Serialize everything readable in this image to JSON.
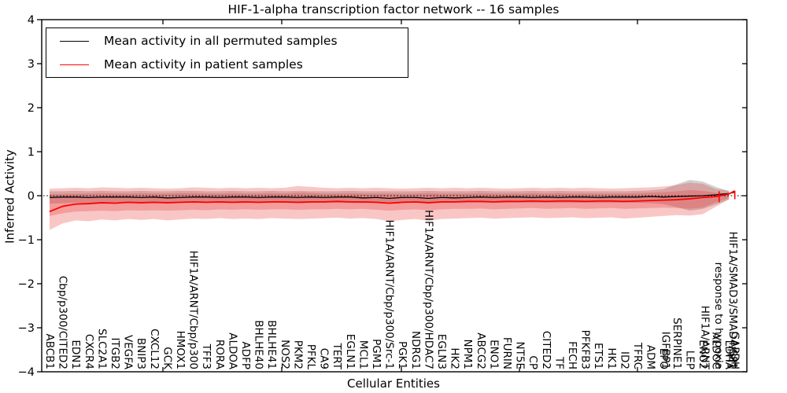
{
  "legend": {
    "items": [
      {
        "label": "Mean activity in all permuted samples",
        "color": "#000000"
      },
      {
        "label": "Mean activity in patient samples",
        "color": "#ff0000"
      }
    ]
  },
  "chart_data": {
    "type": "line",
    "title": "HIF-1-alpha transcription factor network -- 16 samples",
    "xlabel": "Cellular Entities",
    "ylabel": "Inferred Activity",
    "ylim": [
      -4,
      4
    ],
    "yticks": [
      4,
      3,
      2,
      1,
      0,
      -1,
      -2,
      -3,
      -4
    ],
    "zero_line": 0,
    "grid": false,
    "legend_position": "upper left",
    "categories": [
      {
        "x": 0,
        "label": "ABCB1"
      },
      {
        "x": 1,
        "label": "Cbp/p300/CITED2"
      },
      {
        "x": 2,
        "label": "EDN1"
      },
      {
        "x": 3,
        "label": "CXCR4"
      },
      {
        "x": 4,
        "label": "SLC2A1"
      },
      {
        "x": 5,
        "label": "ITGB2"
      },
      {
        "x": 6,
        "label": "VEGFA"
      },
      {
        "x": 7,
        "label": "BNIP3"
      },
      {
        "x": 8,
        "label": "CXCL12"
      },
      {
        "x": 9,
        "label": "GCK"
      },
      {
        "x": 10,
        "label": "HMOX1"
      },
      {
        "x": 11,
        "label": "HIF1A/ARNT/Cbp/p300"
      },
      {
        "x": 12,
        "label": "TFF3"
      },
      {
        "x": 13,
        "label": "RORA"
      },
      {
        "x": 14,
        "label": "ALDOA"
      },
      {
        "x": 15,
        "label": "ADFP"
      },
      {
        "x": 16,
        "label": "BHLHE40"
      },
      {
        "x": 17,
        "label": "BHLHE41"
      },
      {
        "x": 18,
        "label": "NOS2"
      },
      {
        "x": 19,
        "label": "PKM2"
      },
      {
        "x": 20,
        "label": "PFKL"
      },
      {
        "x": 21,
        "label": "CA9"
      },
      {
        "x": 22,
        "label": "TERT"
      },
      {
        "x": 23,
        "label": "EGLN1"
      },
      {
        "x": 24,
        "label": "MCL1"
      },
      {
        "x": 25,
        "label": "PGM1"
      },
      {
        "x": 26,
        "label": "HIF1A/ARNT/Cbp/p300/Src-1"
      },
      {
        "x": 27,
        "label": "PGK1"
      },
      {
        "x": 28,
        "label": "NDRG1"
      },
      {
        "x": 29,
        "label": "HIF1A/ARNT/Cbp/p300/HDAC7"
      },
      {
        "x": 30,
        "label": "EGLN3"
      },
      {
        "x": 31,
        "label": "HK2"
      },
      {
        "x": 32,
        "label": "NPM1"
      },
      {
        "x": 33,
        "label": "ABCG2"
      },
      {
        "x": 34,
        "label": "ENO1"
      },
      {
        "x": 35,
        "label": "FURIN"
      },
      {
        "x": 36,
        "label": "NT5E"
      },
      {
        "x": 37,
        "label": "CP"
      },
      {
        "x": 38,
        "label": "CITED2"
      },
      {
        "x": 39,
        "label": "TF"
      },
      {
        "x": 40,
        "label": "FECH"
      },
      {
        "x": 41,
        "label": "PFKFB3"
      },
      {
        "x": 42,
        "label": "ETS1"
      },
      {
        "x": 43,
        "label": "HK1"
      },
      {
        "x": 44,
        "label": "ID2"
      },
      {
        "x": 45,
        "label": "TFRC"
      },
      {
        "x": 46,
        "label": "ADM"
      },
      {
        "x": 47,
        "label": "EPO"
      },
      {
        "x": 47.15,
        "label": "IGFBP1"
      },
      {
        "x": 48,
        "label": "SERPINE1"
      },
      {
        "x": 49,
        "label": "LEP"
      },
      {
        "x": 50,
        "label": "ENO2"
      },
      {
        "x": 50.15,
        "label": "HIF1A/ARNT"
      },
      {
        "x": 51,
        "label": "ALDOC"
      },
      {
        "x": 51.2,
        "label": "response to hypoxia"
      },
      {
        "x": 52,
        "label": "LDHA"
      },
      {
        "x": 52.15,
        "label": "TPI1"
      },
      {
        "x": 52.3,
        "label": "HIF1A/SMAD3/SMAD4/SP1"
      },
      {
        "x": 52.45,
        "label": "GAPDH"
      }
    ],
    "band_x": [
      0,
      1,
      2,
      3,
      4,
      5,
      6,
      7,
      8,
      9,
      10,
      11,
      12,
      13,
      14,
      15,
      16,
      17,
      18,
      19,
      20,
      21,
      22,
      23,
      24,
      25,
      26,
      27,
      28,
      29,
      30,
      31,
      32,
      33,
      34,
      35,
      36,
      37,
      38,
      39,
      40,
      41,
      42,
      43,
      44,
      45,
      46,
      47,
      48,
      49,
      50,
      51,
      52
    ],
    "bands": [
      {
        "name": "permuted-std-band",
        "color": "rgba(120,120,120,0.35)",
        "upper": [
          0.1,
          0.1,
          0.11,
          0.1,
          0.11,
          0.1,
          0.1,
          0.11,
          0.1,
          0.1,
          0.11,
          0.11,
          0.1,
          0.1,
          0.11,
          0.1,
          0.1,
          0.11,
          0.1,
          0.11,
          0.1,
          0.1,
          0.1,
          0.11,
          0.1,
          0.1,
          0.1,
          0.1,
          0.1,
          0.11,
          0.1,
          0.1,
          0.1,
          0.11,
          0.1,
          0.1,
          0.1,
          0.11,
          0.1,
          0.11,
          0.1,
          0.1,
          0.1,
          0.1,
          0.1,
          0.11,
          0.12,
          0.15,
          0.26,
          0.36,
          0.32,
          0.2,
          0.1
        ],
        "lower": [
          -0.18,
          -0.17,
          -0.16,
          -0.17,
          -0.16,
          -0.16,
          -0.16,
          -0.17,
          -0.16,
          -0.17,
          -0.16,
          -0.16,
          -0.16,
          -0.16,
          -0.17,
          -0.16,
          -0.16,
          -0.16,
          -0.16,
          -0.17,
          -0.16,
          -0.16,
          -0.16,
          -0.16,
          -0.17,
          -0.16,
          -0.17,
          -0.16,
          -0.16,
          -0.17,
          -0.16,
          -0.16,
          -0.16,
          -0.16,
          -0.16,
          -0.16,
          -0.16,
          -0.16,
          -0.16,
          -0.16,
          -0.16,
          -0.16,
          -0.16,
          -0.16,
          -0.16,
          -0.16,
          -0.17,
          -0.19,
          -0.26,
          -0.34,
          -0.3,
          -0.2,
          -0.09
        ]
      },
      {
        "name": "patient-std-outer-band",
        "color": "rgba(235,50,50,0.28)",
        "upper": [
          0.16,
          0.17,
          0.18,
          0.17,
          0.19,
          0.18,
          0.17,
          0.18,
          0.17,
          0.16,
          0.17,
          0.19,
          0.18,
          0.17,
          0.18,
          0.17,
          0.18,
          0.17,
          0.18,
          0.22,
          0.2,
          0.18,
          0.17,
          0.18,
          0.17,
          0.18,
          0.17,
          0.16,
          0.17,
          0.18,
          0.17,
          0.18,
          0.17,
          0.18,
          0.17,
          0.16,
          0.17,
          0.18,
          0.17,
          0.18,
          0.17,
          0.18,
          0.17,
          0.16,
          0.17,
          0.18,
          0.19,
          0.21,
          0.24,
          0.3,
          0.27,
          0.15,
          0.12
        ],
        "lower": [
          -0.78,
          -0.63,
          -0.56,
          -0.58,
          -0.54,
          -0.56,
          -0.53,
          -0.55,
          -0.53,
          -0.56,
          -0.54,
          -0.52,
          -0.53,
          -0.51,
          -0.53,
          -0.52,
          -0.53,
          -0.51,
          -0.52,
          -0.53,
          -0.52,
          -0.51,
          -0.5,
          -0.52,
          -0.51,
          -0.53,
          -0.58,
          -0.55,
          -0.53,
          -0.57,
          -0.53,
          -0.52,
          -0.51,
          -0.5,
          -0.52,
          -0.51,
          -0.5,
          -0.49,
          -0.51,
          -0.5,
          -0.49,
          -0.51,
          -0.5,
          -0.49,
          -0.52,
          -0.5,
          -0.48,
          -0.46,
          -0.44,
          -0.45,
          -0.42,
          -0.25,
          -0.08
        ]
      },
      {
        "name": "patient-std-inner-band",
        "color": "rgba(235,50,50,0.28)",
        "upper": [
          0.03,
          0.04,
          0.05,
          0.05,
          0.06,
          0.05,
          0.05,
          0.06,
          0.05,
          0.05,
          0.06,
          0.06,
          0.05,
          0.05,
          0.06,
          0.05,
          0.05,
          0.06,
          0.05,
          0.07,
          0.06,
          0.05,
          0.05,
          0.06,
          0.05,
          0.05,
          0.05,
          0.04,
          0.05,
          0.06,
          0.05,
          0.05,
          0.05,
          0.06,
          0.05,
          0.05,
          0.05,
          0.06,
          0.05,
          0.06,
          0.05,
          0.05,
          0.05,
          0.05,
          0.05,
          0.06,
          0.07,
          0.08,
          0.1,
          0.13,
          0.11,
          0.07,
          0.05
        ],
        "lower": [
          -0.46,
          -0.4,
          -0.36,
          -0.35,
          -0.34,
          -0.35,
          -0.33,
          -0.34,
          -0.33,
          -0.34,
          -0.33,
          -0.32,
          -0.33,
          -0.31,
          -0.32,
          -0.31,
          -0.32,
          -0.31,
          -0.31,
          -0.32,
          -0.31,
          -0.31,
          -0.3,
          -0.31,
          -0.3,
          -0.32,
          -0.34,
          -0.32,
          -0.31,
          -0.33,
          -0.31,
          -0.3,
          -0.3,
          -0.29,
          -0.31,
          -0.3,
          -0.29,
          -0.28,
          -0.3,
          -0.29,
          -0.28,
          -0.3,
          -0.29,
          -0.28,
          -0.3,
          -0.29,
          -0.28,
          -0.27,
          -0.28,
          -0.3,
          -0.27,
          -0.15,
          -0.05
        ]
      }
    ],
    "series": [
      {
        "id": "permuted-mean-line",
        "name": "Mean activity in all permuted samples",
        "color": "#000000",
        "width": 1.3,
        "x": [
          0,
          1,
          2,
          3,
          4,
          5,
          6,
          7,
          8,
          9,
          10,
          11,
          12,
          13,
          14,
          15,
          16,
          17,
          18,
          19,
          20,
          21,
          22,
          23,
          24,
          25,
          26,
          27,
          28,
          29,
          30,
          31,
          32,
          33,
          34,
          35,
          36,
          37,
          38,
          39,
          40,
          41,
          42,
          43,
          44,
          45,
          46,
          47,
          48,
          49,
          50,
          51,
          52,
          52.45
        ],
        "y": [
          -0.04,
          -0.03,
          -0.03,
          -0.04,
          -0.03,
          -0.03,
          -0.03,
          -0.04,
          -0.03,
          -0.05,
          -0.04,
          -0.03,
          -0.03,
          -0.04,
          -0.03,
          -0.03,
          -0.04,
          -0.03,
          -0.03,
          -0.04,
          -0.03,
          -0.04,
          -0.03,
          -0.03,
          -0.05,
          -0.04,
          -0.06,
          -0.04,
          -0.04,
          -0.06,
          -0.04,
          -0.05,
          -0.04,
          -0.03,
          -0.04,
          -0.03,
          -0.03,
          -0.04,
          -0.03,
          -0.04,
          -0.03,
          -0.03,
          -0.04,
          -0.03,
          -0.03,
          -0.03,
          -0.02,
          -0.03,
          -0.02,
          -0.01,
          0.0,
          0.02,
          0.05,
          0.08
        ]
      },
      {
        "id": "patient-mean-line",
        "name": "Mean activity in patient samples",
        "color": "#ff0000",
        "width": 1.8,
        "x": [
          0,
          1,
          2,
          3,
          4,
          5,
          6,
          7,
          8,
          9,
          10,
          11,
          12,
          13,
          14,
          15,
          16,
          17,
          18,
          19,
          20,
          21,
          22,
          23,
          24,
          25,
          26,
          27,
          28,
          29,
          30,
          31,
          32,
          33,
          34,
          35,
          36,
          37,
          38,
          39,
          40,
          41,
          42,
          43,
          44,
          45,
          46,
          47,
          48,
          49,
          50,
          51,
          52,
          52.45
        ],
        "y": [
          -0.36,
          -0.24,
          -0.19,
          -0.18,
          -0.16,
          -0.17,
          -0.15,
          -0.16,
          -0.15,
          -0.16,
          -0.15,
          -0.14,
          -0.15,
          -0.14,
          -0.15,
          -0.14,
          -0.15,
          -0.14,
          -0.14,
          -0.15,
          -0.14,
          -0.14,
          -0.13,
          -0.14,
          -0.14,
          -0.15,
          -0.17,
          -0.15,
          -0.14,
          -0.16,
          -0.14,
          -0.14,
          -0.13,
          -0.13,
          -0.14,
          -0.13,
          -0.13,
          -0.12,
          -0.13,
          -0.12,
          -0.12,
          -0.13,
          -0.12,
          -0.12,
          -0.13,
          -0.12,
          -0.11,
          -0.1,
          -0.09,
          -0.07,
          -0.04,
          -0.02,
          0.04,
          0.11
        ]
      }
    ],
    "whiskers": [
      {
        "x": 51.25,
        "top": 0.1,
        "bottom": -0.15,
        "color": "#ff0000"
      },
      {
        "x": 52.45,
        "top": 0.11,
        "bottom": -0.08,
        "color": "#ff0000"
      }
    ]
  }
}
